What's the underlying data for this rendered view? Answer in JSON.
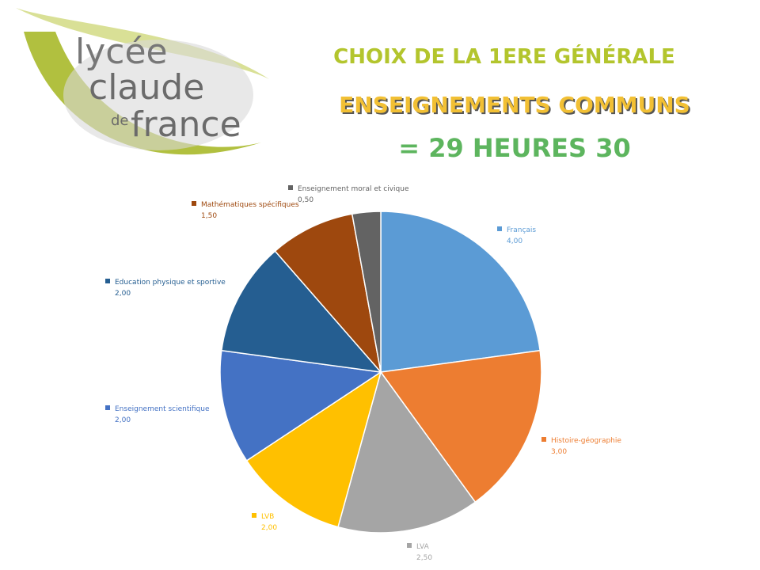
{
  "logo": {
    "lines": [
      "lycée",
      "claude",
      "de",
      "france"
    ]
  },
  "headings": [
    "CHOIX DE LA 1ERE GÉNÉRALE",
    "ENSEIGNEMENTS COMMUNS",
    "= 29 HEURES 30"
  ],
  "chart_data": {
    "type": "pie",
    "categories": [
      "Français",
      "Histoire-géographie",
      "LVA",
      "LVB",
      "Enseignement scientifique",
      "Education physique et sportive",
      "Mathématiques spécifiques",
      "Enseignement moral et civique"
    ],
    "values": [
      4.0,
      3.0,
      2.5,
      2.0,
      2.0,
      2.0,
      1.5,
      0.5
    ],
    "value_labels": [
      "4,00",
      "3,00",
      "2,50",
      "2,00",
      "2,00",
      "2,00",
      "1,50",
      "0,50"
    ],
    "colors": [
      "#5b9bd5",
      "#ed7d31",
      "#a5a5a5",
      "#ffc000",
      "#4472c4",
      "#255e91",
      "#9e480e",
      "#636363"
    ]
  }
}
